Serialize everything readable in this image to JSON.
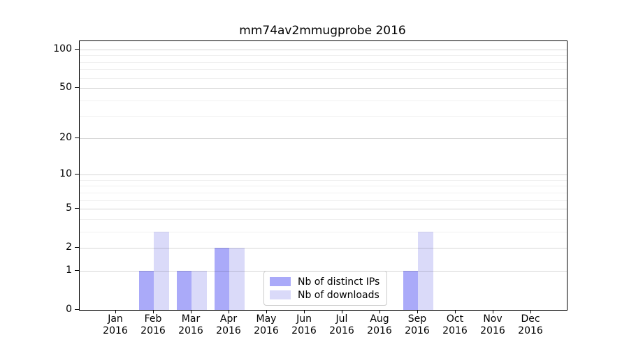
{
  "chart_data": {
    "type": "bar",
    "title": "mm74av2mmugprobe 2016",
    "year": "2016",
    "categories": [
      "Jan",
      "Feb",
      "Mar",
      "Apr",
      "May",
      "Jun",
      "Jul",
      "Aug",
      "Sep",
      "Oct",
      "Nov",
      "Dec"
    ],
    "series": [
      {
        "name": "Nb of distinct IPs",
        "slug": "distinct-ips",
        "color": "#aaaaf9",
        "values": [
          0,
          1,
          1,
          2,
          0,
          0,
          0,
          0,
          1,
          0,
          0,
          0
        ]
      },
      {
        "name": "Nb of downloads",
        "slug": "downloads",
        "color": "#dadaf9",
        "values": [
          0,
          3,
          1,
          2,
          0,
          0,
          0,
          0,
          3,
          0,
          0,
          0
        ]
      }
    ],
    "y_axis": {
      "scale": "log1p",
      "major_ticks": [
        100,
        50,
        20,
        10,
        5,
        2,
        1,
        0
      ],
      "minor_gridlines": [
        3,
        4,
        6,
        7,
        8,
        9,
        30,
        40,
        60,
        70,
        80,
        90
      ],
      "top_value": 116,
      "ylim": [
        0,
        116
      ]
    },
    "x_axis": {
      "label_lines": "month-over-year"
    },
    "legend": {
      "position": "lower-center",
      "entries": [
        "Nb of distinct IPs",
        "Nb of downloads"
      ]
    },
    "grid": "horizontal",
    "colors": {
      "axis": "#000000",
      "major_grid": "#d6d6d6",
      "minor_grid": "#eeeeee",
      "legend_border": "#cccccc",
      "background": "#ffffff",
      "text": "#000000"
    }
  }
}
